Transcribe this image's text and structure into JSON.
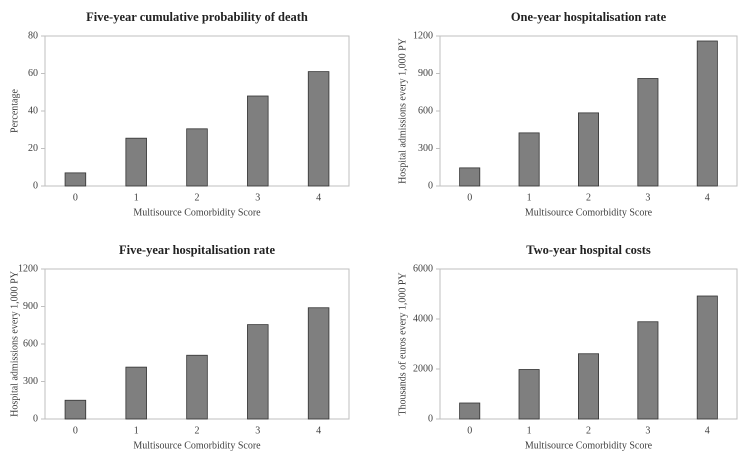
{
  "chart_data": [
    {
      "type": "bar",
      "title": "Five-year cumulative probability of death",
      "x_label": "Multisource Comorbidity Score",
      "y_label": "Percentage",
      "categories": [
        "0",
        "1",
        "2",
        "3",
        "4"
      ],
      "values": [
        7,
        25.5,
        30.5,
        48,
        61
      ],
      "color": "#7f7f7f",
      "ylim": [
        0,
        80
      ],
      "yticks": [
        0,
        20,
        40,
        60,
        80
      ]
    },
    {
      "type": "bar",
      "title": "One-year hospitalisation rate",
      "x_label": "Multisource Comorbidity Score",
      "y_label": "Hospital admissions every 1,000 PY",
      "categories": [
        "0",
        "1",
        "2",
        "3",
        "4"
      ],
      "values": [
        145,
        425,
        585,
        860,
        1160
      ],
      "color": "#7f7f7f",
      "ylim": [
        0,
        1200
      ],
      "yticks": [
        0,
        300,
        600,
        900,
        1200
      ]
    },
    {
      "type": "bar",
      "title": "Five-year hospitalisation rate",
      "x_label": "Multisource Comorbidity Score",
      "y_label": "Hospital admissions every 1,000 PY",
      "categories": [
        "0",
        "1",
        "2",
        "3",
        "4"
      ],
      "values": [
        150,
        415,
        510,
        755,
        890
      ],
      "color": "#7f7f7f",
      "ylim": [
        0,
        1200
      ],
      "yticks": [
        0,
        300,
        600,
        900,
        1200
      ]
    },
    {
      "type": "bar",
      "title": "Two-year hospital costs",
      "x_label": "Multisource Comorbidity Score",
      "y_label": "Thousands of euros every 1,000 PY",
      "categories": [
        "0",
        "1",
        "2",
        "3",
        "4"
      ],
      "values": [
        640,
        1980,
        2610,
        3890,
        4920
      ],
      "color": "#7f7f7f",
      "ylim": [
        0,
        6000
      ],
      "yticks": [
        0,
        2000,
        4000,
        6000
      ]
    }
  ]
}
